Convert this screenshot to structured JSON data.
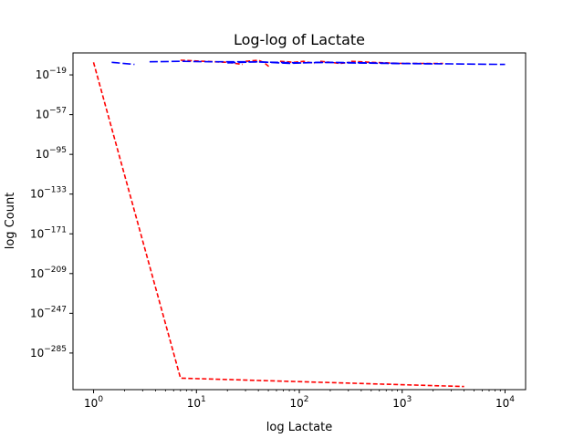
{
  "chart_data": {
    "type": "line",
    "title": "Log-log of Lactate",
    "xlabel": "log Lactate",
    "ylabel": "log Count",
    "xscale": "log",
    "yscale": "log",
    "xlim_exp": [
      -0.2,
      4.2
    ],
    "ylim_exp": [
      -320,
      2
    ],
    "x_ticks": [
      {
        "base": "10",
        "exp": "0",
        "value": 1
      },
      {
        "base": "10",
        "exp": "1",
        "value": 10
      },
      {
        "base": "10",
        "exp": "2",
        "value": 100
      },
      {
        "base": "10",
        "exp": "3",
        "value": 1000
      },
      {
        "base": "10",
        "exp": "4",
        "value": 10000
      }
    ],
    "y_ticks": [
      {
        "base": "10",
        "exp": "−19",
        "value": -19
      },
      {
        "base": "10",
        "exp": "−57",
        "value": -57
      },
      {
        "base": "10",
        "exp": "−95",
        "value": -95
      },
      {
        "base": "10",
        "exp": "−133",
        "value": -133
      },
      {
        "base": "10",
        "exp": "−171",
        "value": -171
      },
      {
        "base": "10",
        "exp": "−209",
        "value": -209
      },
      {
        "base": "10",
        "exp": "−247",
        "value": -247
      },
      {
        "base": "10",
        "exp": "−285",
        "value": -285
      }
    ],
    "grid": false,
    "legend": "none",
    "series": [
      {
        "color": "#ff0000",
        "style": "dashed",
        "segments": [
          [
            [
              1,
              -7
            ],
            [
              7,
              -309
            ],
            [
              4000,
              -317
            ]
          ],
          [
            [
              7,
              -5
            ],
            [
              12,
              -6
            ],
            [
              20,
              -7
            ],
            [
              28,
              -9
            ]
          ],
          [
            [
              30,
              -6
            ],
            [
              40,
              -5
            ],
            [
              45,
              -7
            ],
            [
              52,
              -12
            ]
          ],
          [
            [
              65,
              -6
            ],
            [
              90,
              -7
            ],
            [
              110,
              -6
            ],
            [
              140,
              -8
            ]
          ],
          [
            [
              160,
              -6
            ],
            [
              200,
              -7
            ],
            [
              250,
              -8
            ],
            [
              310,
              -7
            ]
          ],
          [
            [
              320,
              -6
            ],
            [
              500,
              -7
            ],
            [
              1000,
              -8
            ],
            [
              2500,
              -8
            ]
          ]
        ]
      },
      {
        "color": "#0000ff",
        "style": "dashed",
        "segments": [
          [
            [
              1.5,
              -7
            ],
            [
              2.5,
              -9
            ]
          ],
          [
            [
              3.5,
              -6.5
            ],
            [
              7,
              -6
            ],
            [
              14,
              -6.5
            ],
            [
              30,
              -6.5
            ],
            [
              60,
              -7
            ],
            [
              100,
              -7.5
            ],
            [
              200,
              -7
            ],
            [
              500,
              -7.5
            ],
            [
              1000,
              -8
            ],
            [
              3000,
              -8.5
            ],
            [
              10000,
              -9
            ]
          ],
          [
            [
              20,
              -7.5
            ],
            [
              40,
              -6.5
            ],
            [
              80,
              -8
            ],
            [
              150,
              -7
            ],
            [
              300,
              -7.5
            ],
            [
              700,
              -8
            ],
            [
              2000,
              -8.5
            ]
          ]
        ]
      }
    ]
  }
}
